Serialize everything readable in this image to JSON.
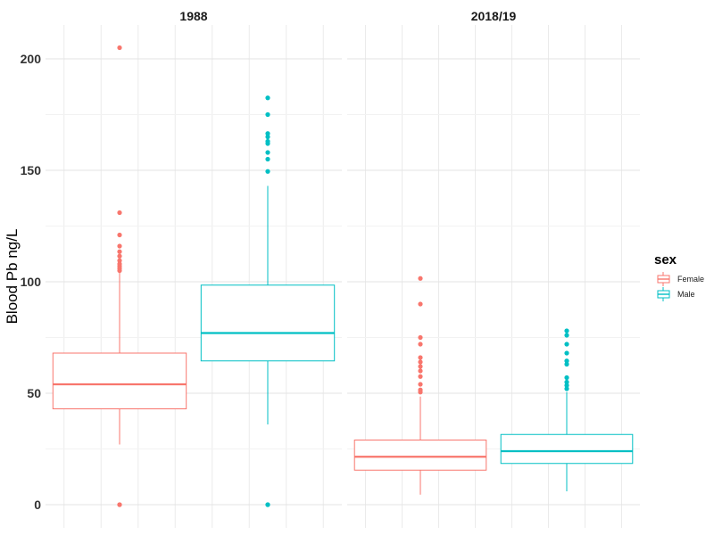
{
  "chart_data": {
    "type": "boxplot",
    "ylabel": "Blood Pb ng/L",
    "xlabel": "",
    "ylim": [
      -8,
      213
    ],
    "yticks": [
      0,
      50,
      100,
      150,
      200
    ],
    "grid": true,
    "legend": {
      "title": "sex",
      "position": "right",
      "entries": [
        {
          "label": "Female",
          "color": "#F8766D"
        },
        {
          "label": "Male",
          "color": "#00BFC4"
        }
      ]
    },
    "panels": [
      {
        "title": "1988",
        "groups": [
          {
            "sex": "Female",
            "min": 27,
            "q1": 43,
            "median": 54,
            "q3": 68,
            "max": 106,
            "outliers": [
              205,
              131,
              121,
              116,
              113.5,
              111.5,
              109.5,
              108,
              107,
              106,
              105,
              0,
              0
            ]
          },
          {
            "sex": "Male",
            "min": 36,
            "q1": 64.5,
            "median": 77,
            "q3": 98.5,
            "max": 143,
            "outliers": [
              182.5,
              175,
              166.5,
              165,
              163,
              162,
              158,
              155,
              149.5,
              0,
              0
            ]
          }
        ]
      },
      {
        "title": "2018/19",
        "groups": [
          {
            "sex": "Female",
            "min": 4.5,
            "q1": 15.5,
            "median": 21.5,
            "q3": 29,
            "max": 48.5,
            "outliers": [
              101.5,
              90,
              75,
              72,
              66,
              64,
              62,
              60,
              57.5,
              54,
              51.5,
              50.5
            ]
          },
          {
            "sex": "Male",
            "min": 6,
            "q1": 18.5,
            "median": 24,
            "q3": 31.5,
            "max": 50.5,
            "outliers": [
              78,
              76,
              72,
              68,
              64.5,
              63,
              57,
              55,
              53.5,
              52
            ]
          }
        ]
      }
    ]
  }
}
